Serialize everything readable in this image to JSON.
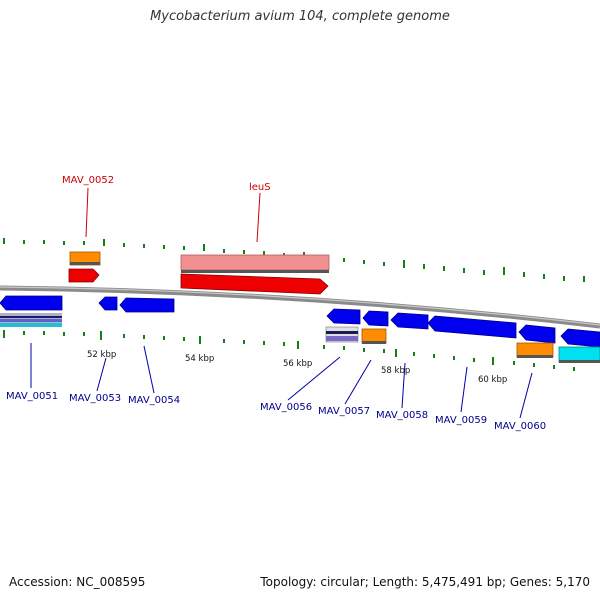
{
  "title": "Mycobacterium avium 104, complete genome",
  "footer": {
    "accession": "Accession: NC_008595",
    "topology": "Topology: circular; Length: 5,475,491 bp; Genes: 5,170"
  },
  "colors": {
    "forward_cds": "#0000ee",
    "cds_outline": "#00008a",
    "highlight": "#ee0000",
    "highlight_light": "#f09090",
    "orange": "#ff8c00",
    "cyan": "#00e0ee",
    "purple": "#7b68c8",
    "tick": "#128012",
    "backbone": "#888888",
    "label_blue": "#00008b",
    "label_red": "#cc0000"
  },
  "kbp_labels": [
    "52 kbp",
    "54 kbp",
    "56 kbp",
    "58 kbp",
    "60 kbp"
  ],
  "gene_labels": {
    "MAV_0052": "MAV_0052",
    "leuS": "leuS",
    "MAV_0051": "MAV_0051",
    "MAV_0053": "MAV_0053",
    "MAV_0054": "MAV_0054",
    "MAV_0056": "MAV_0056",
    "MAV_0057": "MAV_0057",
    "MAV_0058": "MAV_0058",
    "MAV_0059": "MAV_0059",
    "MAV_0060": "MAV_0060"
  }
}
